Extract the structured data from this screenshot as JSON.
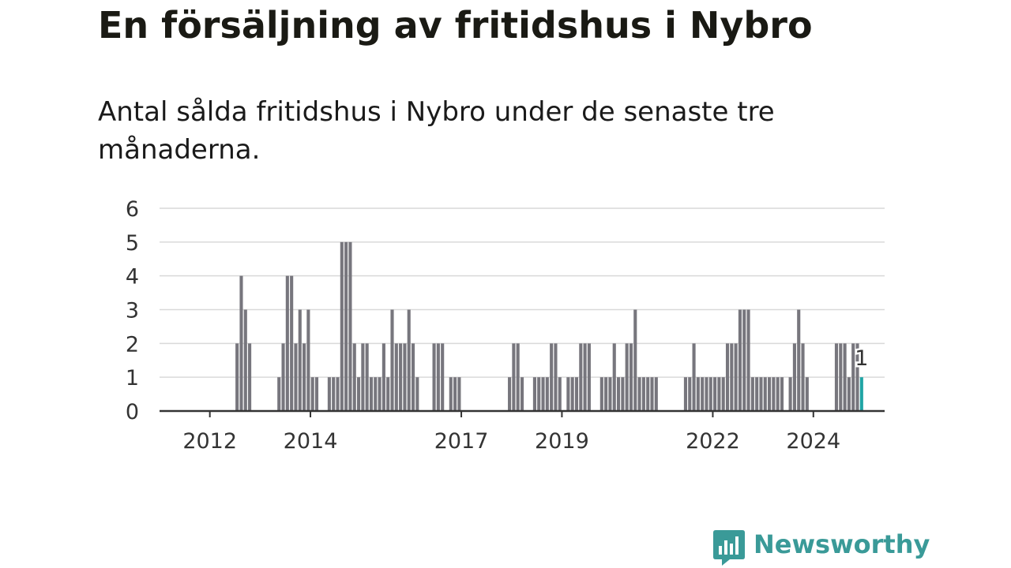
{
  "title": "En försäljning av fritidshus i Nybro",
  "subtitle": "Antal sålda fritidshus i Nybro under de senaste tre månaderna.",
  "brand": {
    "name": "Newsworthy",
    "color": "#3a9a98"
  },
  "colors": {
    "bar": "#77767d",
    "highlight": "#20a4a5",
    "grid": "#d9d9d9",
    "axis": "#333333"
  },
  "chart_data": {
    "type": "bar",
    "x_start": "2011-01",
    "x_end": "2025-06",
    "ylim": [
      0,
      6
    ],
    "yticks": [
      0,
      1,
      2,
      3,
      4,
      5,
      6
    ],
    "xticks": [
      "2012",
      "2014",
      "2017",
      "2019",
      "2022",
      "2024"
    ],
    "grid": true,
    "highlight": {
      "month": "2024-12",
      "value": 1,
      "label": "1"
    },
    "series": [
      {
        "values": [
          [
            "2012-07",
            2
          ],
          [
            "2012-08",
            4
          ],
          [
            "2012-09",
            3
          ],
          [
            "2012-10",
            2
          ],
          [
            "2013-05",
            1
          ],
          [
            "2013-06",
            2
          ],
          [
            "2013-07",
            4
          ],
          [
            "2013-08",
            4
          ],
          [
            "2013-09",
            2
          ],
          [
            "2013-10",
            3
          ],
          [
            "2013-11",
            2
          ],
          [
            "2013-12",
            3
          ],
          [
            "2014-01",
            1
          ],
          [
            "2014-02",
            1
          ],
          [
            "2014-05",
            1
          ],
          [
            "2014-06",
            1
          ],
          [
            "2014-07",
            1
          ],
          [
            "2014-08",
            5
          ],
          [
            "2014-09",
            5
          ],
          [
            "2014-10",
            5
          ],
          [
            "2014-11",
            2
          ],
          [
            "2014-12",
            1
          ],
          [
            "2015-01",
            2
          ],
          [
            "2015-02",
            2
          ],
          [
            "2015-03",
            1
          ],
          [
            "2015-04",
            1
          ],
          [
            "2015-05",
            1
          ],
          [
            "2015-06",
            2
          ],
          [
            "2015-07",
            1
          ],
          [
            "2015-08",
            3
          ],
          [
            "2015-09",
            2
          ],
          [
            "2015-10",
            2
          ],
          [
            "2015-11",
            2
          ],
          [
            "2015-12",
            3
          ],
          [
            "2016-01",
            2
          ],
          [
            "2016-02",
            1
          ],
          [
            "2016-06",
            2
          ],
          [
            "2016-07",
            2
          ],
          [
            "2016-08",
            2
          ],
          [
            "2016-10",
            1
          ],
          [
            "2016-11",
            1
          ],
          [
            "2016-12",
            1
          ],
          [
            "2017-12",
            1
          ],
          [
            "2018-01",
            2
          ],
          [
            "2018-02",
            2
          ],
          [
            "2018-03",
            1
          ],
          [
            "2018-06",
            1
          ],
          [
            "2018-07",
            1
          ],
          [
            "2018-08",
            1
          ],
          [
            "2018-09",
            1
          ],
          [
            "2018-10",
            2
          ],
          [
            "2018-11",
            2
          ],
          [
            "2018-12",
            1
          ],
          [
            "2019-02",
            1
          ],
          [
            "2019-03",
            1
          ],
          [
            "2019-04",
            1
          ],
          [
            "2019-05",
            2
          ],
          [
            "2019-06",
            2
          ],
          [
            "2019-07",
            2
          ],
          [
            "2019-10",
            1
          ],
          [
            "2019-11",
            1
          ],
          [
            "2019-12",
            1
          ],
          [
            "2020-01",
            2
          ],
          [
            "2020-02",
            1
          ],
          [
            "2020-03",
            1
          ],
          [
            "2020-04",
            2
          ],
          [
            "2020-05",
            2
          ],
          [
            "2020-06",
            3
          ],
          [
            "2020-07",
            1
          ],
          [
            "2020-08",
            1
          ],
          [
            "2020-09",
            1
          ],
          [
            "2020-10",
            1
          ],
          [
            "2020-11",
            1
          ],
          [
            "2021-06",
            1
          ],
          [
            "2021-07",
            1
          ],
          [
            "2021-08",
            2
          ],
          [
            "2021-09",
            1
          ],
          [
            "2021-10",
            1
          ],
          [
            "2021-11",
            1
          ],
          [
            "2021-12",
            1
          ],
          [
            "2022-01",
            1
          ],
          [
            "2022-02",
            1
          ],
          [
            "2022-03",
            1
          ],
          [
            "2022-04",
            2
          ],
          [
            "2022-05",
            2
          ],
          [
            "2022-06",
            2
          ],
          [
            "2022-07",
            3
          ],
          [
            "2022-08",
            3
          ],
          [
            "2022-09",
            3
          ],
          [
            "2022-10",
            1
          ],
          [
            "2022-11",
            1
          ],
          [
            "2022-12",
            1
          ],
          [
            "2023-01",
            1
          ],
          [
            "2023-02",
            1
          ],
          [
            "2023-03",
            1
          ],
          [
            "2023-04",
            1
          ],
          [
            "2023-05",
            1
          ],
          [
            "2023-07",
            1
          ],
          [
            "2023-08",
            2
          ],
          [
            "2023-09",
            3
          ],
          [
            "2023-10",
            2
          ],
          [
            "2023-11",
            1
          ],
          [
            "2024-06",
            2
          ],
          [
            "2024-07",
            2
          ],
          [
            "2024-08",
            2
          ],
          [
            "2024-09",
            1
          ],
          [
            "2024-10",
            2
          ],
          [
            "2024-11",
            2
          ],
          [
            "2024-12",
            1
          ]
        ]
      }
    ]
  }
}
